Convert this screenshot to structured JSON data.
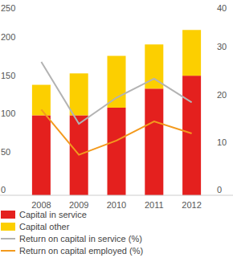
{
  "chart_data": {
    "type": "bar",
    "stacked": true,
    "categories": [
      "2008",
      "2009",
      "2010",
      "2011",
      "2012"
    ],
    "series": [
      {
        "name": "Capital in service",
        "type": "bar",
        "color": "#e4201e",
        "values": [
          105,
          105,
          115,
          140,
          157
        ]
      },
      {
        "name": "Capital other",
        "type": "bar",
        "color": "#fccf00",
        "values": [
          40,
          55,
          68,
          58,
          60
        ]
      },
      {
        "name": "Return on capital in service (%)",
        "type": "line",
        "axis": "y2",
        "color": "#b3b3b3",
        "values": [
          28,
          15,
          20.5,
          24.5,
          19.5
        ]
      },
      {
        "name": "Return on capital employed (%)",
        "type": "line",
        "axis": "y2",
        "color": "#f39a1e",
        "values": [
          18,
          8.5,
          11.5,
          15.5,
          13
        ]
      }
    ],
    "ylim": [
      0,
      250
    ],
    "yticks": [
      0,
      50,
      100,
      150,
      200,
      250
    ],
    "y2lim": [
      0,
      40
    ],
    "y2ticks": [
      0,
      10,
      20,
      30,
      40
    ],
    "grid": false,
    "legend": "bottom"
  }
}
